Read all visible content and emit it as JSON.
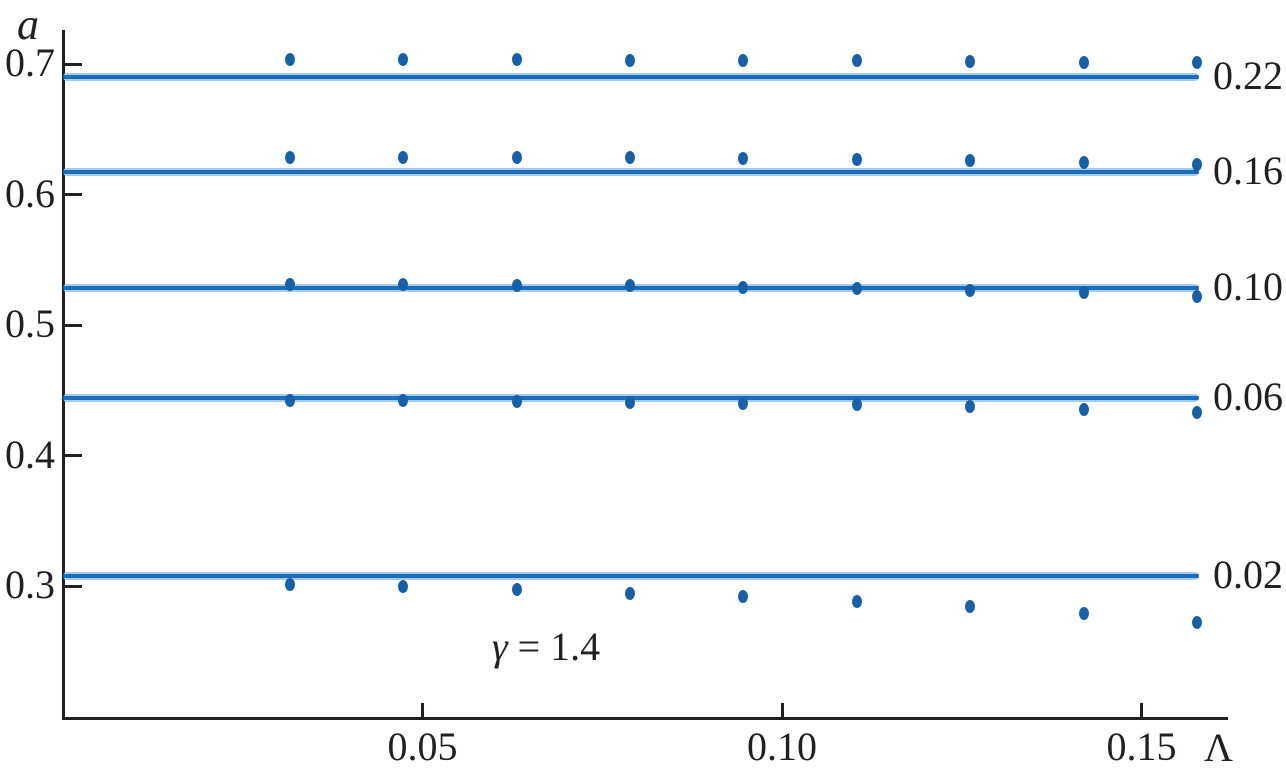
{
  "chart_data": {
    "type": "scatter",
    "title": "",
    "ylabel": "a",
    "xlabel": "Λ",
    "annotation": {
      "symbol": "γ",
      "rest": " = 1.4"
    },
    "x_axis": {
      "ticks": [
        {
          "label": "0.05",
          "value": 0.05
        },
        {
          "label": "0.10",
          "value": 0.1
        },
        {
          "label": "0.15",
          "value": 0.15
        }
      ],
      "range": [
        0,
        0.162
      ]
    },
    "y_axis": {
      "ticks": [
        {
          "label": "0.7",
          "value": 0.7
        },
        {
          "label": "0.6",
          "value": 0.6
        },
        {
          "label": "0.5",
          "value": 0.5
        },
        {
          "label": "0.4",
          "value": 0.4
        },
        {
          "label": "0.3",
          "value": 0.3
        }
      ],
      "range": [
        0.197,
        0.726
      ]
    },
    "x": [
      0.0316,
      0.0473,
      0.0631,
      0.0789,
      0.0946,
      0.1104,
      0.1262,
      0.142,
      0.1577
    ],
    "line_x_range": [
      0,
      0.158
    ],
    "series": [
      {
        "label": "0.22",
        "line_level": 0.69,
        "points": [
          0.7031,
          0.7031,
          0.7031,
          0.7027,
          0.7023,
          0.7023,
          0.7019,
          0.7015,
          0.7008
        ]
      },
      {
        "label": "0.16",
        "line_level": 0.617,
        "points": [
          0.6287,
          0.6287,
          0.6284,
          0.628,
          0.6276,
          0.6268,
          0.6261,
          0.6249,
          0.623
        ]
      },
      {
        "label": "0.10",
        "line_level": 0.528,
        "points": [
          0.5307,
          0.5307,
          0.5303,
          0.5299,
          0.5291,
          0.528,
          0.5268,
          0.5249,
          0.5218
        ]
      },
      {
        "label": "0.06",
        "line_level": 0.444,
        "points": [
          0.4418,
          0.4418,
          0.441,
          0.4406,
          0.4399,
          0.4387,
          0.4375,
          0.4356,
          0.4326
        ]
      },
      {
        "label": "0.02",
        "line_level": 0.308,
        "points": [
          0.3008,
          0.3,
          0.2977,
          0.2946,
          0.292,
          0.2885,
          0.2843,
          0.2789,
          0.2724
        ]
      }
    ],
    "legend": "none",
    "grid": "off",
    "colors": {
      "dot": "#1660aa",
      "line_core": "#1b6cba",
      "line_halo": "#a4cce9",
      "axis": "#231f20",
      "text": "#231f20"
    }
  }
}
